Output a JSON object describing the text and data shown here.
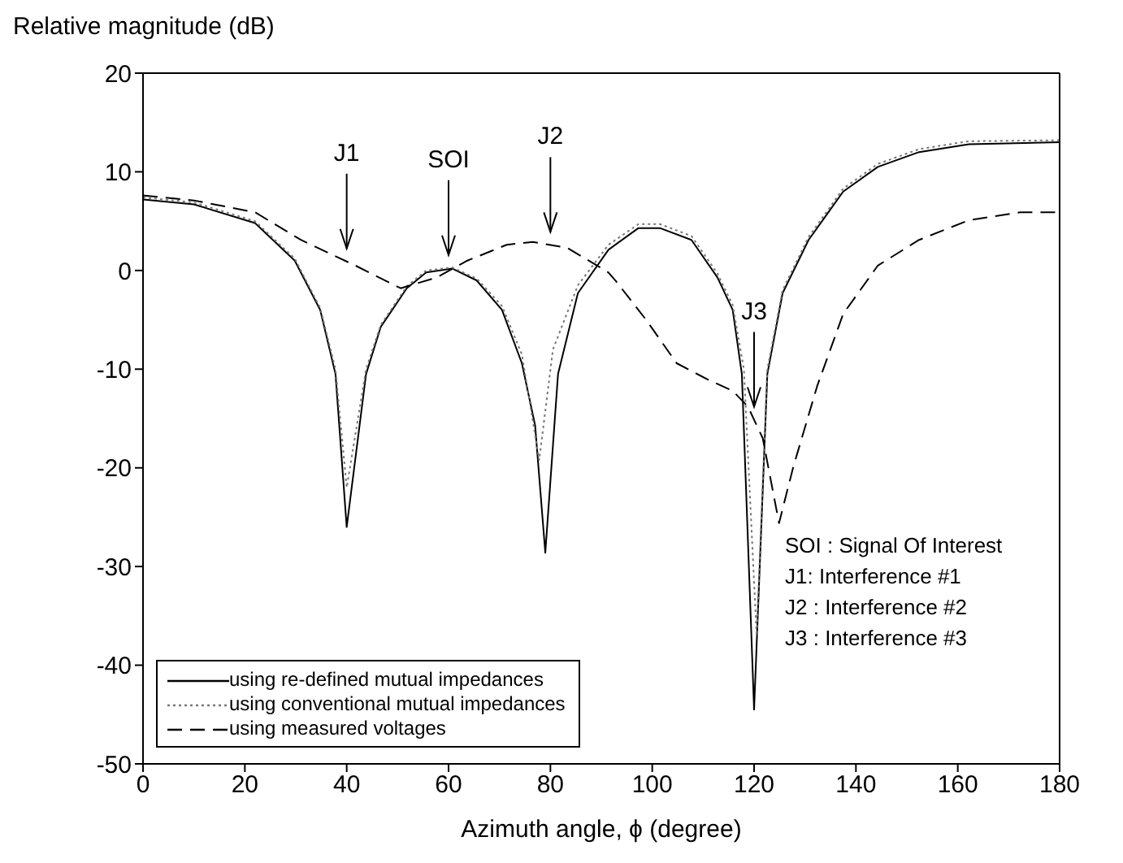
{
  "chart_data": {
    "type": "line",
    "xlabel": "Azimuth angle, ϕ  (degree)",
    "ylabel": "Relative magnitude (dB)",
    "xlim": [
      0,
      180
    ],
    "xticks": [
      0,
      20,
      40,
      60,
      80,
      100,
      120,
      140,
      160,
      180
    ],
    "ylim": [
      -50,
      20
    ],
    "yticks": [
      -50,
      -40,
      -30,
      -20,
      -10,
      0,
      10,
      20
    ],
    "grid": false,
    "legend": "bottom left",
    "marker": "none",
    "series": [
      {
        "name": "using re-defined mutual impedances",
        "color": "#000000",
        "line_style": "solid",
        "x": [
          0,
          10,
          22,
          29.8,
          34.8,
          37.8,
          40,
          43.8,
          46.7,
          51.8,
          55.6,
          60.7,
          65.5,
          70.5,
          74.4,
          77,
          79,
          81.5,
          85.4,
          91.4,
          97.3,
          101.5,
          107.7,
          112.8,
          115.8,
          117.6,
          120,
          122.6,
          125.6,
          130.7,
          137.5,
          144.3,
          152.4,
          162.2,
          180
        ],
        "values": [
          7.2,
          6.7,
          4.8,
          1,
          -4,
          -10.5,
          -26,
          -10.5,
          -5.7,
          -1.8,
          -0.2,
          0.2,
          -1,
          -4,
          -9.4,
          -15.7,
          -28.6,
          -10.5,
          -2.3,
          2.1,
          4.3,
          4.3,
          3.1,
          -0.7,
          -4,
          -10.5,
          -44.5,
          -10.5,
          -2.3,
          3.1,
          8,
          10.5,
          12,
          12.8,
          13
        ]
      },
      {
        "name": "using conventional mutual impedances",
        "color": "#777777",
        "line_style": "dotted",
        "x": [
          0,
          10,
          22,
          29.8,
          34.8,
          37.8,
          40,
          43.8,
          46.7,
          51.8,
          55.6,
          60.7,
          65.5,
          70.5,
          74.4,
          77.8,
          80.5,
          85.4,
          91.4,
          97.3,
          101.5,
          107.7,
          112.8,
          115.8,
          118,
          120.5,
          122.6,
          125.6,
          130.7,
          137.5,
          144.3,
          152.4,
          162.2,
          180
        ],
        "values": [
          7.4,
          6.9,
          5,
          1.2,
          -3.8,
          -10,
          -22,
          -10,
          -5.5,
          -1.6,
          0,
          0.3,
          -0.8,
          -3.6,
          -8.5,
          -19.2,
          -8,
          -1.5,
          2.6,
          4.7,
          4.7,
          3.5,
          -0.3,
          -3.5,
          -10,
          -37,
          -10,
          -2,
          3.4,
          8.3,
          10.8,
          12.3,
          13.1,
          13.2
        ]
      },
      {
        "name": "using measured voltages",
        "color": "#000000",
        "line_style": "dashed",
        "x": [
          0,
          10,
          22,
          31,
          41.7,
          50.6,
          57.7,
          63.7,
          71.4,
          76.5,
          83.3,
          91.4,
          92.9,
          98.8,
          104.8,
          110.7,
          115.8,
          118.8,
          121.7,
          124.9,
          127.7,
          132.4,
          137.5,
          144.3,
          152.4,
          162.2,
          172.3,
          180
        ],
        "values": [
          7.6,
          7.1,
          5.9,
          3.1,
          0.5,
          -1.8,
          -0.7,
          1,
          2.6,
          2.9,
          2.3,
          -0.2,
          -1.1,
          -5,
          -9.4,
          -11,
          -12.2,
          -13.8,
          -17,
          -25.6,
          -19.9,
          -11.7,
          -4.4,
          0.5,
          3.1,
          5.1,
          5.9,
          5.9
        ]
      }
    ],
    "annotations": [
      {
        "text": "J1",
        "x": 40
      },
      {
        "text": "SOI",
        "x": 60
      },
      {
        "text": "J2",
        "x": 80
      },
      {
        "text": "J3",
        "x": 120
      },
      "SOI : Signal Of Interest",
      "J1: Interference #1",
      "J2 : Interference #2",
      "J3 : Interference #3"
    ]
  }
}
